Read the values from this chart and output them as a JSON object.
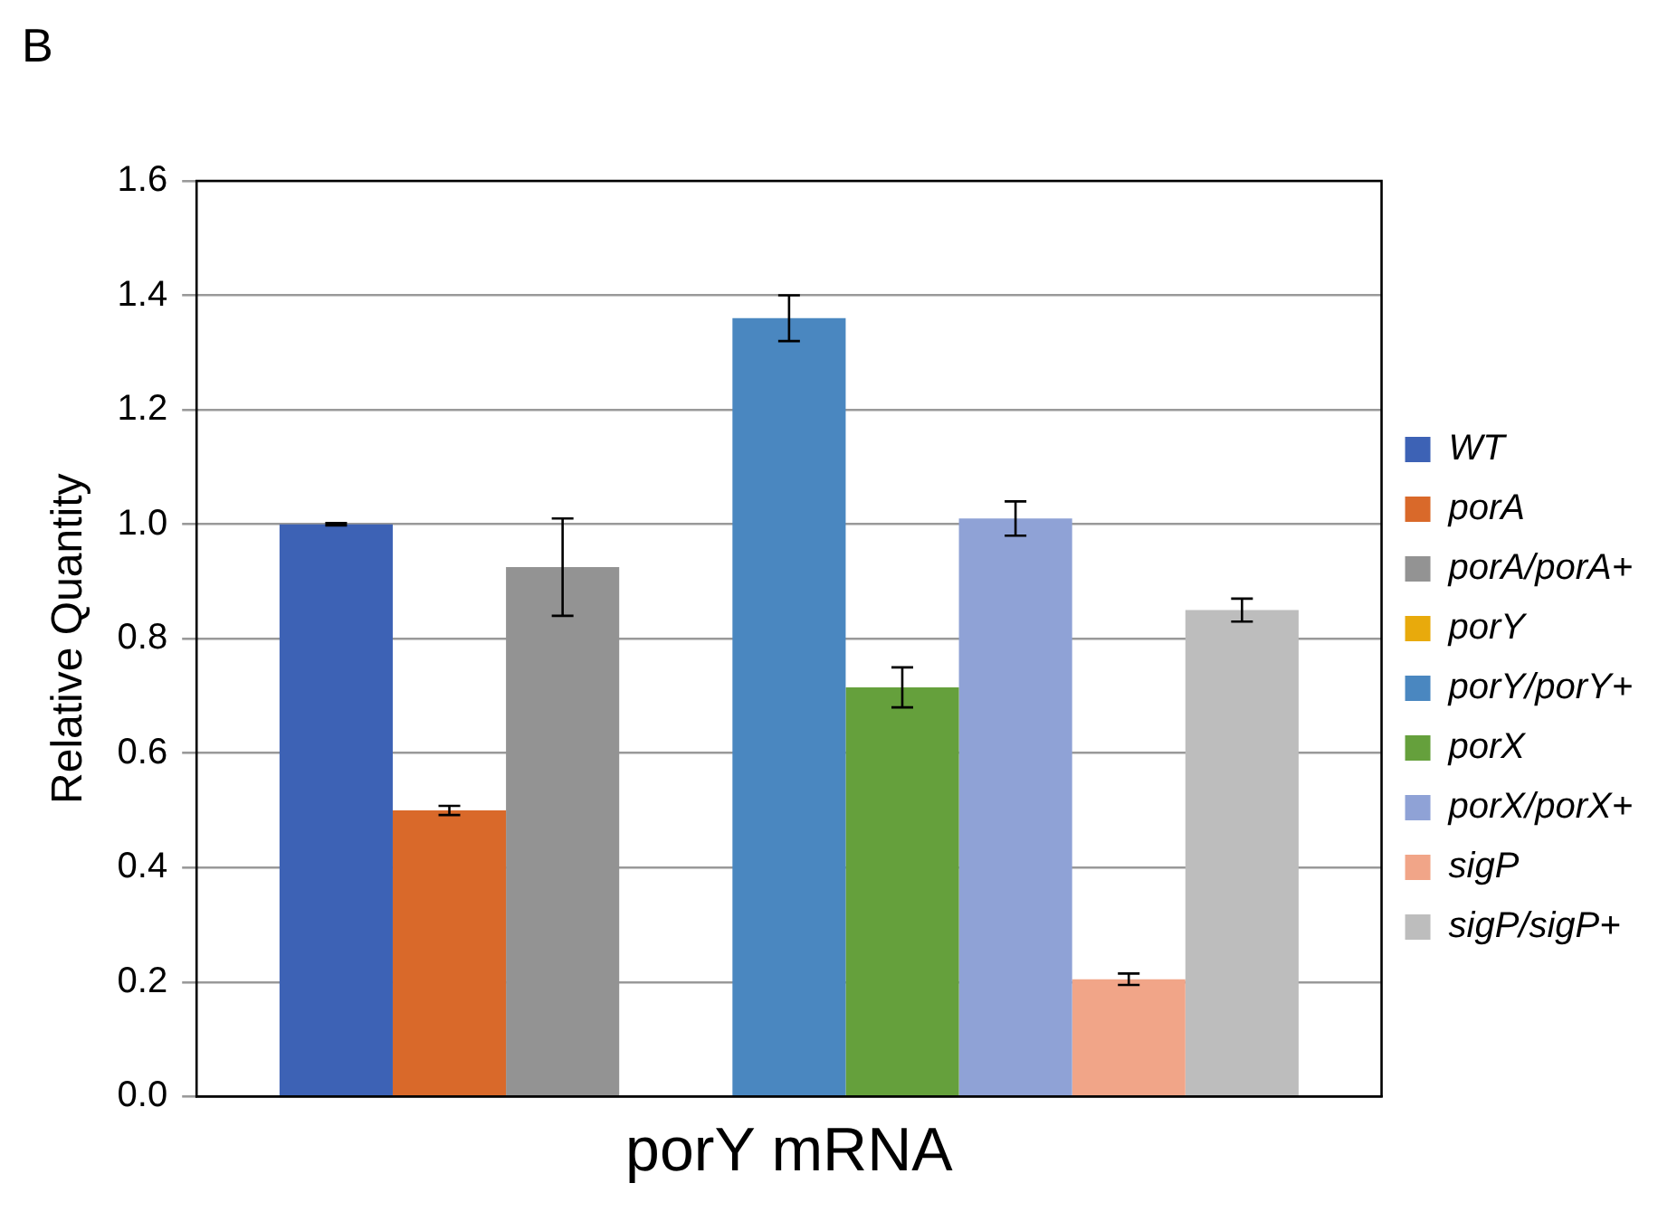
{
  "chart_data": {
    "type": "bar",
    "categories": [
      "porY mRNA"
    ],
    "ylabel": "Relative Quantity",
    "annotations": [
      "B"
    ],
    "ylim": [
      0,
      1.6
    ],
    "yticks": [
      {
        "value": 0,
        "label": "0.0"
      },
      {
        "value": 0.2,
        "label": "0.2"
      },
      {
        "value": 0.4,
        "label": "0.4"
      },
      {
        "value": 0.6,
        "label": "0.6"
      },
      {
        "value": 0.8,
        "label": "0.8"
      },
      {
        "value": 1,
        "label": "1.0"
      },
      {
        "value": 1.2,
        "label": "1.2"
      },
      {
        "value": 1.4,
        "label": "1.4"
      },
      {
        "value": 1.6,
        "label": "1.6"
      }
    ],
    "grid": "y",
    "legend": "right",
    "series": [
      {
        "name": "WT",
        "color": "#3d62b5",
        "values": [
          1.0
        ],
        "errors": [
          0.002
        ]
      },
      {
        "name": "porA",
        "color": "#d9692a",
        "values": [
          0.5
        ],
        "errors": [
          0.008
        ]
      },
      {
        "name": "porA/porA+",
        "color": "#939393",
        "values": [
          0.925
        ],
        "errors": [
          0.085
        ]
      },
      {
        "name": "porY",
        "color": "#e8aa0c",
        "values": [
          null
        ]
      },
      {
        "name": "porY/porY+",
        "color": "#4a87c0",
        "values": [
          1.36
        ],
        "errors": [
          0.04
        ]
      },
      {
        "name": "porX",
        "color": "#65a03c",
        "values": [
          0.715
        ],
        "errors": [
          0.035
        ]
      },
      {
        "name": "porX/porX+",
        "color": "#8fa2d6",
        "values": [
          1.01
        ],
        "errors": [
          0.03
        ]
      },
      {
        "name": "sigP",
        "color": "#f1a588",
        "values": [
          0.205
        ],
        "errors": [
          0.01
        ]
      },
      {
        "name": "sigP/sigP+",
        "color": "#bdbdbd",
        "values": [
          0.85
        ],
        "errors": [
          0.02
        ]
      }
    ]
  }
}
